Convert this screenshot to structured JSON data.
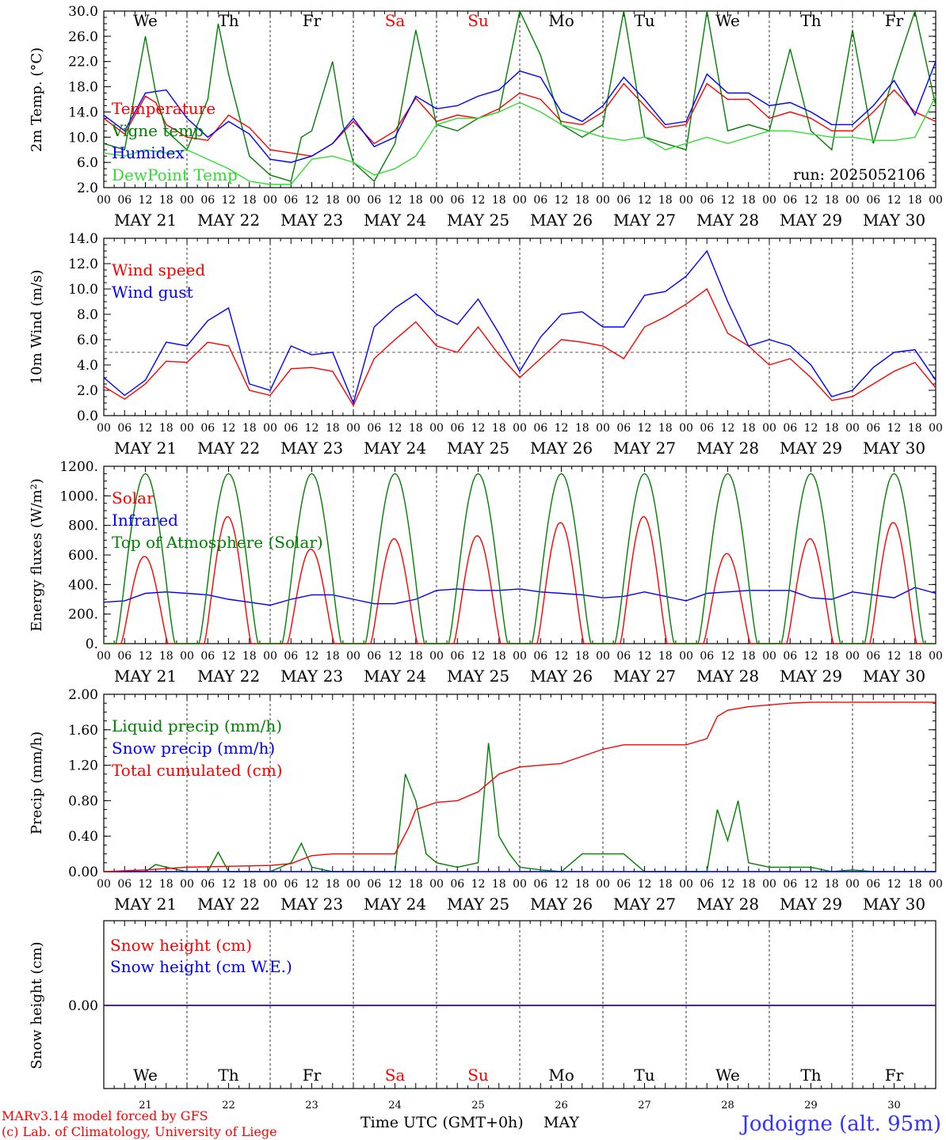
{
  "run_label": "run: 2025052106",
  "footer": {
    "model": "MARv3.14 model forced by GFS",
    "lab": "(c) Lab. of Climatology, University of Liege",
    "xtitle": "Time UTC (GMT+0h)",
    "month": "MAY",
    "station": "Jodoigne (alt. 95m)"
  },
  "colors": {
    "red": "#ff0000",
    "green": "#008000",
    "blue": "#0000ff",
    "lightgreen": "#33dd33",
    "grid": "#000000"
  },
  "days": {
    "weekday": [
      "We",
      "Th",
      "Fr",
      "Sa",
      "Su",
      "Mo",
      "Tu",
      "We",
      "Th",
      "Fr"
    ],
    "weekend": [
      false,
      false,
      false,
      true,
      true,
      false,
      false,
      false,
      false,
      false
    ],
    "dom": [
      "21",
      "22",
      "23",
      "24",
      "25",
      "26",
      "27",
      "28",
      "29",
      "30"
    ],
    "date_label": [
      "MAY 21",
      "MAY 22",
      "MAY 23",
      "MAY 24",
      "MAY 25",
      "MAY 26",
      "MAY 27",
      "MAY 28",
      "MAY 29",
      "MAY 30"
    ],
    "hours": [
      "00",
      "06",
      "12",
      "18"
    ],
    "end_hour": "00"
  },
  "chart_data": [
    {
      "type": "line",
      "ylabel": "2m Temp. (°C)",
      "ylim": [
        2.0,
        30.0
      ],
      "yticks": [
        "2.0",
        "6.0",
        "10.0",
        "14.0",
        "18.0",
        "22.0",
        "26.0",
        "30.0"
      ],
      "x_unit": "hours since May 21 00 UTC",
      "series": [
        {
          "name": "Temperature",
          "color": "red",
          "x": [
            0,
            6,
            12,
            15,
            18,
            24,
            30,
            36,
            42,
            48,
            54,
            60,
            66,
            72,
            78,
            84,
            90,
            96,
            102,
            108,
            114,
            120,
            126,
            132,
            138,
            144,
            150,
            156,
            162,
            168,
            174,
            180,
            186,
            192,
            198,
            204,
            210,
            216,
            222,
            228,
            234,
            240
          ],
          "y": [
            13,
            10.5,
            16.5,
            15.5,
            12,
            10,
            9.5,
            13.5,
            11.5,
            8,
            7.5,
            7,
            9,
            12.5,
            9,
            11,
            16.2,
            12.5,
            13.5,
            13,
            14.5,
            17,
            16,
            12.5,
            12,
            14,
            18.5,
            15,
            11.5,
            12,
            18.5,
            16,
            16,
            13,
            14,
            13,
            11,
            11,
            14,
            17.5,
            14,
            12.5
          ]
        },
        {
          "name": "Vigne temp",
          "color": "green",
          "x": [
            0,
            6,
            9,
            12,
            15,
            18,
            24,
            30,
            33,
            36,
            42,
            48,
            54,
            57,
            60,
            66,
            69,
            72,
            78,
            84,
            90,
            96,
            102,
            108,
            114,
            120,
            126,
            132,
            138,
            144,
            150,
            156,
            162,
            168,
            174,
            180,
            186,
            192,
            198,
            204,
            210,
            216,
            222,
            228,
            234,
            240
          ],
          "y": [
            9,
            8,
            17,
            26,
            17,
            11,
            8,
            16,
            28,
            20,
            7,
            4,
            3,
            10,
            11,
            22,
            12,
            6,
            3,
            9,
            27,
            12,
            11,
            13,
            14,
            30,
            23,
            12,
            10,
            12,
            30,
            10,
            9,
            8,
            30,
            11,
            12,
            11,
            24,
            11,
            8,
            27,
            9,
            20,
            30,
            15
          ]
        },
        {
          "name": "Humidex",
          "color": "blue",
          "x": [
            0,
            6,
            12,
            18,
            24,
            30,
            36,
            42,
            48,
            54,
            60,
            66,
            72,
            78,
            84,
            90,
            96,
            102,
            108,
            114,
            120,
            126,
            132,
            138,
            144,
            150,
            156,
            162,
            168,
            174,
            180,
            186,
            192,
            198,
            204,
            210,
            216,
            222,
            228,
            234,
            240
          ],
          "y": [
            13.5,
            11,
            17,
            17.5,
            13,
            10,
            12.5,
            10.5,
            6.5,
            6,
            7,
            9,
            13,
            8.5,
            10,
            16.5,
            14.5,
            15,
            16.5,
            17.5,
            20.5,
            19.5,
            14,
            12.5,
            15,
            19.5,
            16,
            12,
            12.5,
            20,
            17,
            17,
            15,
            15.5,
            14,
            12,
            12,
            15,
            19,
            13.5,
            22
          ]
        },
        {
          "name": "DewPoint Temp",
          "color": "lightgreen",
          "x": [
            0,
            6,
            12,
            18,
            24,
            30,
            36,
            42,
            48,
            54,
            60,
            66,
            72,
            78,
            84,
            90,
            96,
            102,
            108,
            114,
            120,
            126,
            132,
            138,
            144,
            150,
            156,
            162,
            168,
            174,
            180,
            186,
            192,
            198,
            204,
            210,
            216,
            222,
            228,
            234,
            240
          ],
          "y": [
            7.5,
            7,
            8,
            7.5,
            8,
            6.5,
            5,
            3,
            2.5,
            2.5,
            6.5,
            7,
            6,
            4,
            5,
            7,
            12,
            13,
            13,
            14,
            15.5,
            14,
            12,
            11,
            10,
            9.5,
            10,
            8,
            9,
            10,
            9,
            10,
            11,
            11,
            10.5,
            10,
            10,
            9.5,
            9.5,
            10,
            16.5
          ]
        }
      ]
    },
    {
      "type": "line",
      "ylabel": "10m Wind (m/s)",
      "ylim": [
        0.0,
        14.0
      ],
      "yticks": [
        "0.0",
        "2.0",
        "4.0",
        "6.0",
        "8.0",
        "10.0",
        "12.0",
        "14.0"
      ],
      "reference_line": 5.0,
      "series": [
        {
          "name": "Wind speed",
          "color": "red",
          "x": [
            0,
            6,
            12,
            18,
            24,
            30,
            36,
            42,
            48,
            54,
            60,
            66,
            72,
            78,
            84,
            90,
            96,
            102,
            108,
            114,
            120,
            126,
            132,
            138,
            144,
            150,
            156,
            162,
            168,
            174,
            180,
            186,
            192,
            198,
            204,
            210,
            216,
            222,
            228,
            234,
            240
          ],
          "y": [
            2.3,
            1.3,
            2.5,
            4.3,
            4.2,
            5.8,
            5.5,
            2,
            1.6,
            3.7,
            3.8,
            3.5,
            0.8,
            4.5,
            6,
            7.4,
            5.5,
            5,
            7,
            4.8,
            3,
            4.5,
            6,
            5.8,
            5.5,
            4.5,
            7,
            7.8,
            8.8,
            10,
            6.5,
            5.5,
            4,
            4.5,
            3,
            1.2,
            1.5,
            2.5,
            3.5,
            4.2,
            2.2
          ]
        },
        {
          "name": "Wind gust",
          "color": "blue",
          "x": [
            0,
            6,
            12,
            18,
            24,
            30,
            36,
            42,
            48,
            54,
            60,
            66,
            72,
            78,
            84,
            90,
            96,
            102,
            108,
            114,
            120,
            126,
            132,
            138,
            144,
            150,
            156,
            162,
            168,
            174,
            180,
            186,
            192,
            198,
            204,
            210,
            216,
            222,
            228,
            234,
            240
          ],
          "y": [
            3,
            1.6,
            2.8,
            5.8,
            5.5,
            7.5,
            8.5,
            2.5,
            2,
            5.5,
            4.8,
            5,
            1,
            7,
            8.5,
            9.6,
            8,
            7.2,
            9.2,
            6.5,
            3.5,
            6.2,
            8,
            8.2,
            7,
            7,
            9.5,
            9.8,
            11,
            13,
            9,
            5.5,
            6,
            5.5,
            4,
            1.5,
            2,
            3.8,
            5,
            5.2,
            2.8
          ]
        }
      ]
    },
    {
      "type": "line",
      "ylabel": "Energy fluxes (W/m²)",
      "ylim": [
        0,
        1200
      ],
      "yticks": [
        "0.",
        "200.",
        "400.",
        "600.",
        "800.",
        "1000.",
        "1200."
      ],
      "series": [
        {
          "name": "Solar",
          "color": "red",
          "daily_peak": [
            590,
            860,
            640,
            710,
            730,
            820,
            860,
            610,
            710,
            820
          ]
        },
        {
          "name": "Infrared",
          "color": "blue",
          "x": [
            0,
            6,
            12,
            18,
            24,
            30,
            36,
            42,
            48,
            54,
            60,
            66,
            72,
            78,
            84,
            90,
            96,
            102,
            108,
            114,
            120,
            126,
            132,
            138,
            144,
            150,
            156,
            162,
            168,
            174,
            180,
            186,
            192,
            198,
            204,
            210,
            216,
            222,
            228,
            234,
            240
          ],
          "y": [
            280,
            290,
            340,
            350,
            340,
            330,
            300,
            280,
            260,
            300,
            330,
            330,
            300,
            270,
            270,
            300,
            360,
            370,
            360,
            360,
            370,
            350,
            340,
            330,
            310,
            320,
            350,
            320,
            290,
            340,
            350,
            360,
            360,
            360,
            310,
            300,
            350,
            330,
            310,
            380,
            340
          ]
        },
        {
          "name": "Top of Atmosphere (Solar)",
          "color": "green",
          "daily_peak": [
            1150,
            1150,
            1150,
            1150,
            1150,
            1150,
            1150,
            1150,
            1150,
            1150
          ]
        }
      ]
    },
    {
      "type": "line",
      "ylabel": "Precip (mm/h)",
      "ylim": [
        0.0,
        2.0
      ],
      "yticks": [
        "0.00",
        "0.40",
        "0.80",
        "1.20",
        "1.60",
        "2.00"
      ],
      "series": [
        {
          "name": "Liquid precip (mm/h)",
          "color": "green",
          "x": [
            0,
            12,
            15,
            18,
            24,
            30,
            33,
            36,
            42,
            48,
            54,
            57,
            60,
            66,
            72,
            78,
            84,
            87,
            90,
            93,
            96,
            102,
            108,
            111,
            114,
            117,
            120,
            126,
            132,
            138,
            144,
            150,
            156,
            162,
            168,
            174,
            177,
            180,
            183,
            186,
            192,
            198,
            204,
            210,
            216,
            222,
            228,
            234,
            240
          ],
          "y": [
            0,
            0,
            0.08,
            0.05,
            0,
            0,
            0.22,
            0,
            0,
            0,
            0.1,
            0.32,
            0.05,
            0,
            0,
            0,
            0,
            1.1,
            0.8,
            0.2,
            0.1,
            0.05,
            0.1,
            1.45,
            0.4,
            0.2,
            0.05,
            0.02,
            0,
            0.2,
            0.2,
            0.2,
            0,
            0,
            0,
            0,
            0.7,
            0.35,
            0.8,
            0.1,
            0.05,
            0.05,
            0.05,
            0,
            0.02,
            0,
            0,
            0,
            0
          ]
        },
        {
          "name": "Snow precip (mm/h)",
          "color": "blue",
          "values": "all 0"
        },
        {
          "name": "Total cumulated (cm)",
          "color": "red",
          "x": [
            0,
            12,
            24,
            36,
            48,
            54,
            60,
            66,
            72,
            84,
            88,
            90,
            96,
            102,
            108,
            114,
            120,
            126,
            132,
            138,
            144,
            150,
            156,
            162,
            168,
            174,
            177,
            180,
            186,
            192,
            198,
            204,
            240
          ],
          "y": [
            0,
            0.02,
            0.05,
            0.06,
            0.07,
            0.09,
            0.18,
            0.2,
            0.2,
            0.2,
            0.5,
            0.7,
            0.78,
            0.8,
            0.9,
            1.1,
            1.18,
            1.2,
            1.22,
            1.3,
            1.38,
            1.43,
            1.43,
            1.43,
            1.43,
            1.5,
            1.75,
            1.82,
            1.86,
            1.88,
            1.9,
            1.91,
            1.91
          ]
        }
      ]
    },
    {
      "type": "line",
      "ylabel": "Snow height (cm)",
      "yticks": [
        "0.00"
      ],
      "series": [
        {
          "name": "Snow height (cm)",
          "color": "red",
          "values": "all 0"
        },
        {
          "name": "Snow height (cm W.E.)",
          "color": "blue",
          "values": "all 0"
        }
      ]
    }
  ]
}
